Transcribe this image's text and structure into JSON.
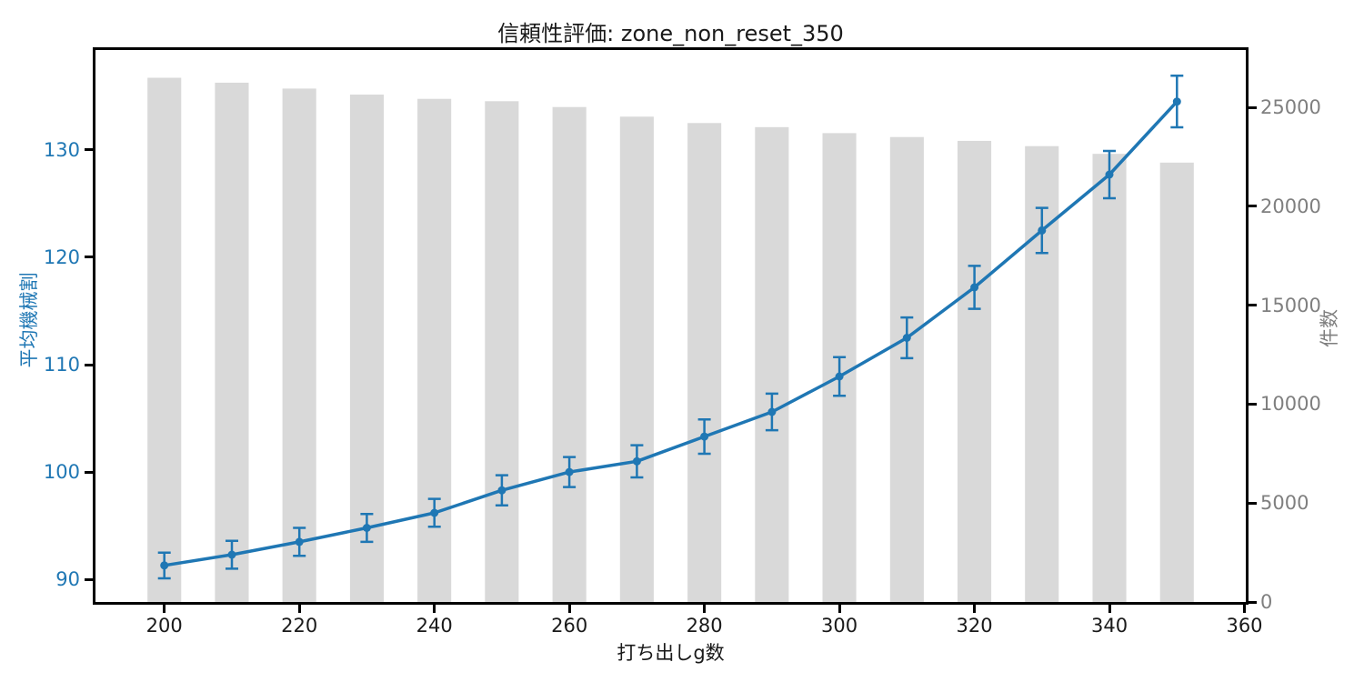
{
  "chart_data": {
    "type": "combo",
    "title": "信頼性評価: zone_non_reset_350",
    "xlabel": "打ち出しg数",
    "ylabel_left": "平均機械割",
    "ylabel_right": "件数",
    "x": [
      200,
      210,
      220,
      230,
      240,
      250,
      260,
      270,
      280,
      290,
      300,
      310,
      320,
      330,
      340,
      350
    ],
    "series": [
      {
        "name": "平均機械割",
        "type": "line",
        "axis": "left",
        "values": [
          91.3,
          92.3,
          93.5,
          94.8,
          96.2,
          98.3,
          100.0,
          101.0,
          103.3,
          105.6,
          108.9,
          112.5,
          117.2,
          122.5,
          127.7,
          134.5
        ],
        "errors": [
          1.2,
          1.3,
          1.3,
          1.3,
          1.3,
          1.4,
          1.4,
          1.5,
          1.6,
          1.7,
          1.8,
          1.9,
          2.0,
          2.1,
          2.2,
          2.4
        ],
        "color": "#1f77b4"
      },
      {
        "name": "件数",
        "type": "bar",
        "axis": "right",
        "values": [
          26500,
          26250,
          25950,
          25650,
          25430,
          25310,
          25020,
          24530,
          24210,
          24000,
          23700,
          23500,
          23310,
          23040,
          22650,
          22210
        ],
        "color": "#d9d9d9",
        "bar_width_x_units": 5
      }
    ],
    "axes": {
      "xlim": [
        189.8,
        360.2
      ],
      "x_ticks": [
        200,
        220,
        240,
        260,
        280,
        300,
        320,
        340,
        360
      ],
      "ylim_left": [
        87.9,
        139.3
      ],
      "y_ticks_left": [
        90,
        100,
        110,
        120,
        130
      ],
      "ylim_right": [
        0,
        27900
      ],
      "y_ticks_right": [
        0,
        5000,
        10000,
        15000,
        20000,
        25000
      ],
      "grid": false,
      "legend": "none"
    },
    "colors": {
      "line": "#1f77b4",
      "bar": "#d9d9d9",
      "left_axis_text": "#1f77b4",
      "right_axis_text": "#7f7f7f",
      "x_axis_text": "#1a1a1a",
      "axis_line": "#000000"
    }
  }
}
